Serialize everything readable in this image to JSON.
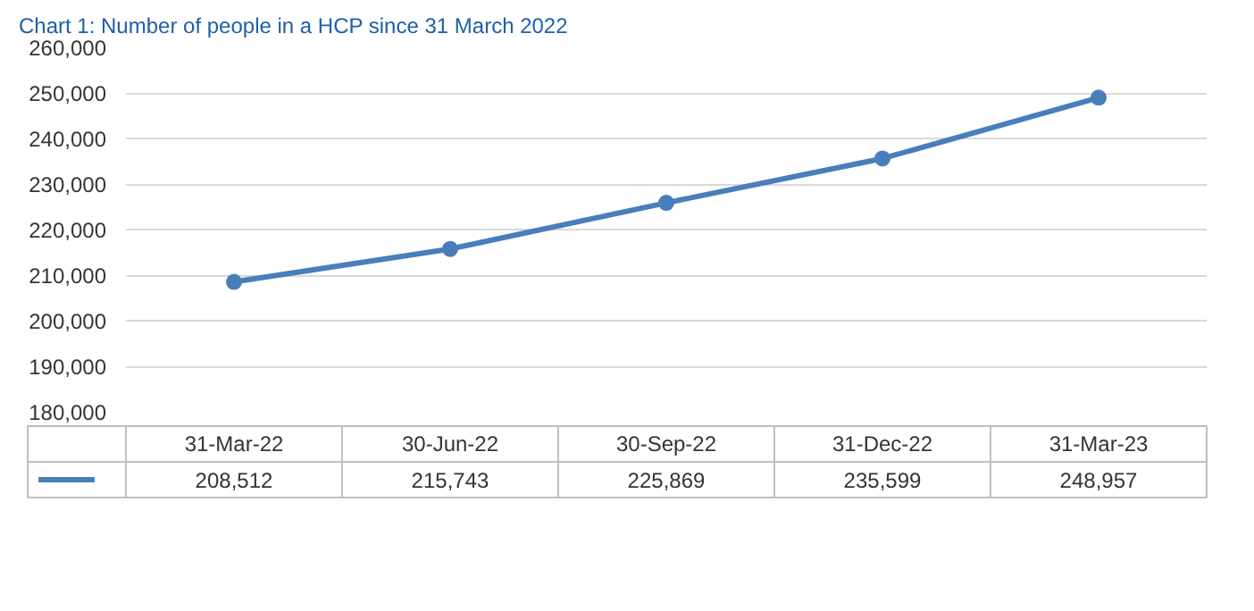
{
  "chart_data": {
    "type": "line",
    "title": "Chart 1: Number of people in a HCP since 31 March 2022",
    "categories": [
      "31-Mar-22",
      "30-Jun-22",
      "30-Sep-22",
      "31-Dec-22",
      "31-Mar-23"
    ],
    "series": [
      {
        "color": "#4a7ebb",
        "values": [
          208512,
          215743,
          225869,
          235599,
          248957
        ],
        "value_labels": [
          "208,512",
          "215,743",
          "225,869",
          "235,599",
          "248,957"
        ]
      }
    ],
    "ylim": [
      180000,
      260000
    ],
    "yticks": [
      {
        "value": 180000,
        "label": "180,000"
      },
      {
        "value": 190000,
        "label": "190,000"
      },
      {
        "value": 200000,
        "label": "200,000"
      },
      {
        "value": 210000,
        "label": "210,000"
      },
      {
        "value": 220000,
        "label": "220,000"
      },
      {
        "value": 230000,
        "label": "230,000"
      },
      {
        "value": 240000,
        "label": "240,000"
      },
      {
        "value": 250000,
        "label": "250,000"
      },
      {
        "value": 260000,
        "label": "260,000"
      }
    ],
    "grid": "y",
    "marker": "circle",
    "line_style": "solid"
  }
}
